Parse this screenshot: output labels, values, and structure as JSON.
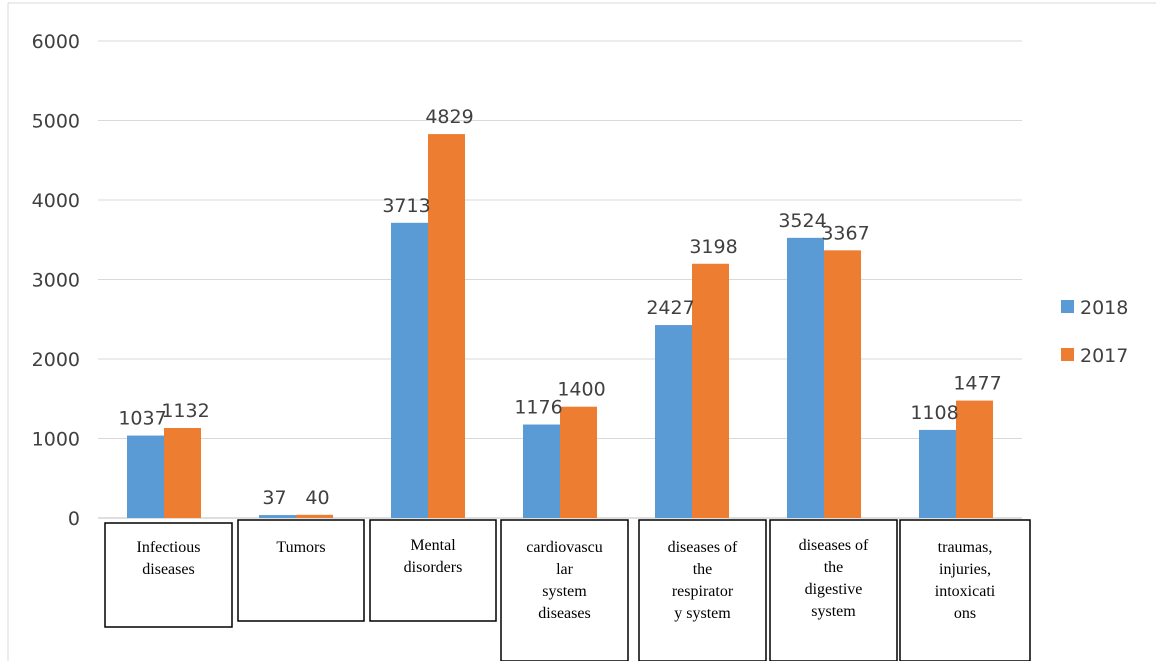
{
  "chart_data": {
    "type": "bar",
    "title": "",
    "xlabel": "",
    "ylabel": "",
    "ylim": [
      0,
      6000
    ],
    "yticks": [
      0,
      1000,
      2000,
      3000,
      4000,
      5000,
      6000
    ],
    "grid": true,
    "legend_position": "right",
    "categories": [
      [
        "Infectious",
        "diseases"
      ],
      [
        "Tumors"
      ],
      [
        "Mental",
        "disorders"
      ],
      [
        "cardiovascu",
        "lar",
        "system",
        "diseases"
      ],
      [
        "diseases of",
        "the",
        "respirator",
        "y system"
      ],
      [
        "diseases of",
        "the",
        "digestive",
        "system"
      ],
      [
        "traumas,",
        "injuries,",
        "intoxicati",
        "ons"
      ]
    ],
    "series": [
      {
        "name": "2018",
        "color": "#5b9bd5",
        "values": [
          1037,
          37,
          3713,
          1176,
          2427,
          3524,
          1108
        ]
      },
      {
        "name": "2017",
        "color": "#ed7d31",
        "values": [
          1132,
          40,
          4829,
          1400,
          3198,
          3367,
          1477
        ]
      }
    ],
    "data_labels": true
  }
}
